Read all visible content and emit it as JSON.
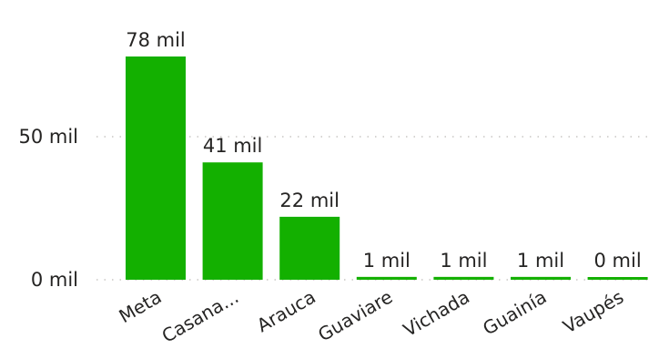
{
  "chart_data": {
    "type": "bar",
    "categories": [
      "Meta",
      "Casana...",
      "Arauca",
      "Guaviare",
      "Vichada",
      "Guainía",
      "Vaupés"
    ],
    "values": [
      78,
      41,
      22,
      1,
      1,
      1,
      0
    ],
    "data_labels": [
      "78 mil",
      "41 mil",
      "22 mil",
      "1 mil",
      "1 mil",
      "1 mil",
      "0 mil"
    ],
    "y_ticks": [
      0,
      50
    ],
    "y_tick_labels": [
      "0 mil",
      "50 mil"
    ],
    "ylim": [
      0,
      78
    ],
    "grid": true,
    "bar_color": "#13B000",
    "title": "",
    "xlabel": "",
    "ylabel": ""
  }
}
